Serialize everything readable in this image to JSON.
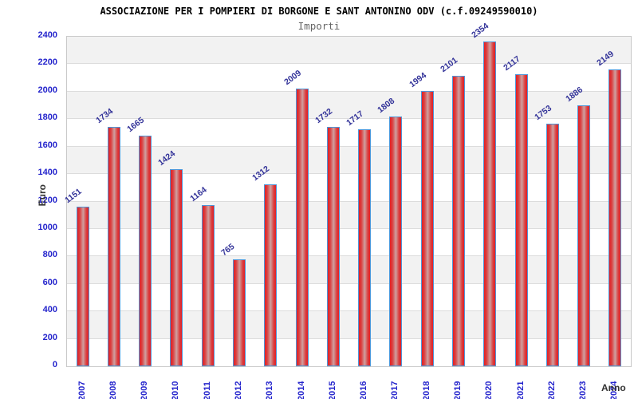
{
  "chart_data": {
    "type": "bar",
    "title": "ASSOCIAZIONE PER I POMPIERI DI BORGONE E SANT ANTONINO ODV (c.f.09249590010)",
    "subtitle": "Importi",
    "xlabel": "Anno",
    "ylabel": "Euro",
    "categories": [
      "2007",
      "2008",
      "2009",
      "2010",
      "2011",
      "2012",
      "2013",
      "2014",
      "2015",
      "2016",
      "2017",
      "2018",
      "2019",
      "2020",
      "2021",
      "2022",
      "2023",
      "2024"
    ],
    "values": [
      1151,
      1734,
      1665,
      1424,
      1164,
      765,
      1312,
      2009,
      1732,
      1717,
      1808,
      1994,
      2101,
      2354,
      2117,
      1753,
      1886,
      2149
    ],
    "ylim": [
      0,
      2400
    ],
    "yticks": [
      0,
      200,
      400,
      600,
      800,
      1000,
      1200,
      1400,
      1600,
      1800,
      2000,
      2200,
      2400
    ],
    "grid": true,
    "legend": "none",
    "colors": {
      "bar_fill": "#e31e24",
      "bar_highlight": "#cfa0a0",
      "bar_border": "#4f96d8",
      "tick_label": "#2424cc",
      "value_label": "#333399",
      "band_gray": "#f2f2f2",
      "gridline": "#dcdcdc",
      "plot_border": "#c9c9c9",
      "title": "#000000",
      "subtitle": "#666666",
      "axis_title": "#333333"
    }
  }
}
